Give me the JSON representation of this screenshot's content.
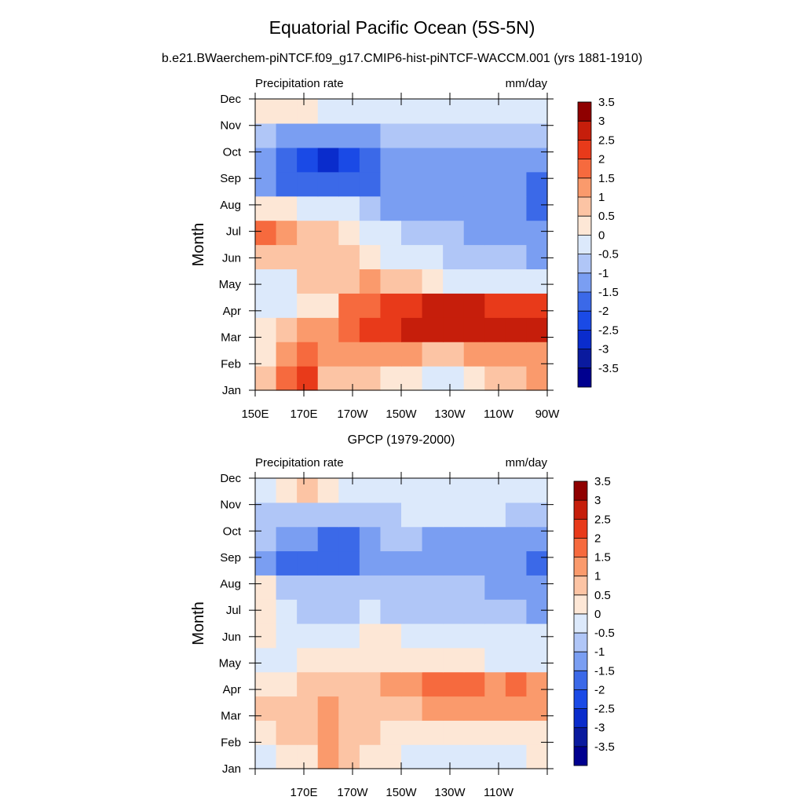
{
  "title": "Equatorial Pacific Ocean (5S-5N)",
  "subtitle": "b.e21.BWaerchem-piNTCF.f09_g17.CMIP6-hist-piNTCF-WACCM.001 (yrs 1881-1910)",
  "chart_data": [
    {
      "type": "heatmap",
      "title": "",
      "left_label": "Precipitation rate",
      "right_label": "mm/day",
      "xlabel": "",
      "ylabel": "Month",
      "x_tick_labels": [
        "150E",
        "170E",
        "170W",
        "150W",
        "130W",
        "110W",
        "90W"
      ],
      "y_tick_labels": [
        "Jan",
        "Feb",
        "Mar",
        "Apr",
        "May",
        "Jun",
        "Jul",
        "Aug",
        "Sep",
        "Oct",
        "Nov",
        "Dec"
      ],
      "legend_labels": [
        "-3.5",
        "-3",
        "-2.5",
        "-2",
        "-1.5",
        "-1",
        "-0.5",
        "0",
        "0.5",
        "1",
        "1.5",
        "2",
        "2.5",
        "3",
        "3.5"
      ],
      "values": [
        [
          1.0,
          2.0,
          2.5,
          1.0,
          1.0,
          1.0,
          0.8,
          0.8,
          0.3,
          -0.3,
          0.5,
          1.0,
          1.0,
          1.5
        ],
        [
          0.8,
          1.5,
          2.0,
          1.5,
          1.5,
          1.5,
          1.5,
          1.5,
          1.3,
          1.3,
          1.5,
          1.7,
          1.8,
          1.8
        ],
        [
          0.5,
          1.0,
          1.5,
          1.5,
          2.0,
          2.5,
          2.8,
          3.0,
          3.0,
          3.0,
          3.1,
          3.2,
          3.3,
          3.3
        ],
        [
          -0.2,
          -0.3,
          0.5,
          0.8,
          2.0,
          2.2,
          2.5,
          2.8,
          3.0,
          3.1,
          3.0,
          2.9,
          2.8,
          2.8
        ],
        [
          -0.3,
          -0.4,
          1.0,
          1.2,
          1.3,
          1.5,
          1.3,
          1.0,
          0.5,
          0.3,
          0.1,
          0.0,
          -0.2,
          -0.3
        ],
        [
          1.0,
          1.0,
          1.0,
          1.0,
          1.0,
          0.8,
          0.3,
          -0.2,
          -0.4,
          -0.6,
          -0.8,
          -1.0,
          -1.0,
          -1.2
        ],
        [
          2.0,
          1.5,
          1.0,
          1.3,
          0.5,
          -0.2,
          -0.5,
          -0.8,
          -0.9,
          -1.0,
          -1.1,
          -1.2,
          -1.3,
          -1.3
        ],
        [
          0.5,
          0.5,
          0.3,
          0.0,
          -0.5,
          -1.0,
          -1.2,
          -1.2,
          -1.3,
          -1.3,
          -1.4,
          -1.4,
          -1.5,
          -1.7
        ],
        [
          -1.5,
          -1.8,
          -2.0,
          -2.0,
          -2.0,
          -1.8,
          -1.5,
          -1.2,
          -1.2,
          -1.2,
          -1.2,
          -1.3,
          -1.5,
          -1.8
        ],
        [
          -1.3,
          -1.8,
          -2.5,
          -2.8,
          -2.5,
          -2.0,
          -1.5,
          -1.2,
          -1.2,
          -1.2,
          -1.2,
          -1.3,
          -1.3,
          -1.5
        ],
        [
          -1.0,
          -1.3,
          -1.5,
          -1.5,
          -1.5,
          -1.3,
          -1.0,
          -0.8,
          -0.7,
          -0.7,
          -0.7,
          -0.7,
          -0.7,
          -0.8
        ],
        [
          0.5,
          0.8,
          0.5,
          0.3,
          0.0,
          -0.3,
          -0.4,
          -0.4,
          -0.4,
          -0.4,
          -0.4,
          -0.4,
          -0.4,
          -0.5
        ]
      ]
    },
    {
      "type": "heatmap",
      "title": "GPCP (1979-2000)",
      "left_label": "Precipitation rate",
      "right_label": "mm/day",
      "xlabel": "",
      "ylabel": "Month",
      "x_tick_labels": [
        "",
        "170E",
        "170W",
        "150W",
        "130W",
        "110W",
        ""
      ],
      "y_tick_labels": [
        "Jan",
        "Feb",
        "Mar",
        "Apr",
        "May",
        "Jun",
        "Jul",
        "Aug",
        "Sep",
        "Oct",
        "Nov",
        "Dec"
      ],
      "legend_labels": [
        "-3.5",
        "-3",
        "-2.5",
        "-2",
        "-1.5",
        "-1",
        "-0.5",
        "0",
        "0.5",
        "1",
        "1.5",
        "2",
        "2.5",
        "3",
        "3.5"
      ],
      "values": [
        [
          0.4,
          0.8,
          0.8,
          1.6,
          1.2,
          0.8,
          0.5,
          0.3,
          0.3,
          0.3,
          0.2,
          0.3,
          0.4,
          0.5
        ],
        [
          0.8,
          1.2,
          1.2,
          1.6,
          1.4,
          1.0,
          0.8,
          0.6,
          0.6,
          0.6,
          0.6,
          0.7,
          0.8,
          0.8
        ],
        [
          1.0,
          1.3,
          1.4,
          1.5,
          1.3,
          1.0,
          1.0,
          1.3,
          1.5,
          1.8,
          1.8,
          1.6,
          1.6,
          1.5
        ],
        [
          0.6,
          0.8,
          1.2,
          1.2,
          1.0,
          1.2,
          1.5,
          1.8,
          2.0,
          2.2,
          2.1,
          1.8,
          2.0,
          1.8
        ],
        [
          0.3,
          0.4,
          0.6,
          0.5,
          0.6,
          0.8,
          0.9,
          0.8,
          0.8,
          0.6,
          0.5,
          0.4,
          0.3,
          0.2
        ],
        [
          0.8,
          -0.3,
          -0.5,
          -0.3,
          0.3,
          0.6,
          0.5,
          0.2,
          0.0,
          -0.2,
          -0.3,
          -0.4,
          -0.4,
          -0.5
        ],
        [
          0.8,
          -0.5,
          -0.8,
          -0.8,
          -0.6,
          -0.5,
          -0.6,
          -0.6,
          -0.7,
          -0.7,
          -0.7,
          -0.8,
          -1.0,
          -1.2
        ],
        [
          0.5,
          -0.8,
          -1.0,
          -1.0,
          -1.0,
          -1.0,
          -0.9,
          -0.8,
          -0.9,
          -1.0,
          -1.0,
          -1.1,
          -1.2,
          -1.3
        ],
        [
          -1.5,
          -1.8,
          -1.7,
          -1.8,
          -1.6,
          -1.5,
          -1.2,
          -1.3,
          -1.5,
          -1.5,
          -1.4,
          -1.2,
          -1.4,
          -1.6
        ],
        [
          -1.0,
          -1.3,
          -1.5,
          -2.0,
          -1.8,
          -1.3,
          -1.0,
          -1.0,
          -1.3,
          -1.4,
          -1.3,
          -1.1,
          -1.1,
          -1.4
        ],
        [
          -0.6,
          -0.8,
          -0.9,
          -0.9,
          -0.8,
          -0.7,
          -0.6,
          -0.5,
          -0.5,
          -0.5,
          -0.5,
          -0.5,
          -0.6,
          -0.8
        ],
        [
          0.3,
          0.8,
          1.2,
          0.8,
          0.4,
          0.1,
          -0.1,
          -0.2,
          -0.3,
          -0.3,
          -0.3,
          -0.3,
          -0.3,
          -0.3
        ]
      ]
    }
  ],
  "colorscale": [
    "#00008f",
    "#0a1a9e",
    "#0a2ccc",
    "#1a4ae6",
    "#3b69e8",
    "#7a9ef2",
    "#b0c6f7",
    "#dce9fb",
    "#fde7d6",
    "#fcc4a4",
    "#fa9a6c",
    "#f66a3e",
    "#e83a1a",
    "#c61e0b",
    "#8f0000"
  ]
}
